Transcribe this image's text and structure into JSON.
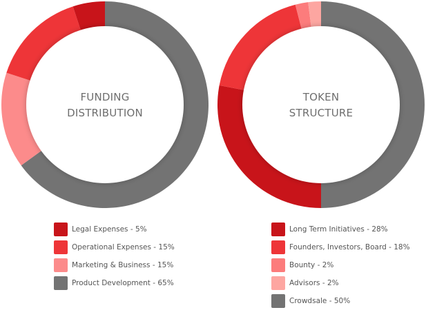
{
  "chart_data": [
    {
      "type": "pie",
      "style": "donut",
      "title_lines": [
        "FUNDING",
        "DISTRIBUTION"
      ],
      "start": "top, clockwise from the largest segment",
      "slices": [
        {
          "label": "Product Development",
          "value": 65,
          "color": "#737373",
          "legend": "Product Development - 65%"
        },
        {
          "label": "Marketing & Business",
          "value": 15,
          "color": "#fc8b8b",
          "legend": "Marketing & Business - 15%"
        },
        {
          "label": "Operational Expenses",
          "value": 15,
          "color": "#ee3538",
          "legend": "Operational Expenses - 15%"
        },
        {
          "label": "Legal Expenses",
          "value": 5,
          "color": "#c8141a",
          "legend": "Legal Expenses - 5%"
        }
      ],
      "legend_order": [
        3,
        2,
        1,
        0
      ]
    },
    {
      "type": "pie",
      "style": "donut",
      "title_lines": [
        "TOKEN",
        "STRUCTURE"
      ],
      "start": "top, clockwise from the largest segment",
      "slices": [
        {
          "label": "Crowdsale",
          "value": 50,
          "color": "#737373",
          "legend": "Crowdsale - 50%"
        },
        {
          "label": "Long Term Initiatives",
          "value": 28,
          "color": "#c8141a",
          "legend": "Long Term Initiatives - 28%"
        },
        {
          "label": "Founders, Investors, Board",
          "value": 18,
          "color": "#ee3538",
          "legend": "Founders, Investors, Board - 18%"
        },
        {
          "label": "Bounty",
          "value": 2,
          "color": "#fc7c7c",
          "legend": "Bounty - 2%"
        },
        {
          "label": "Advisors",
          "value": 2,
          "color": "#fda6a1",
          "legend": "Advisors - 2%"
        }
      ],
      "legend_order": [
        1,
        2,
        3,
        4,
        0
      ]
    }
  ]
}
